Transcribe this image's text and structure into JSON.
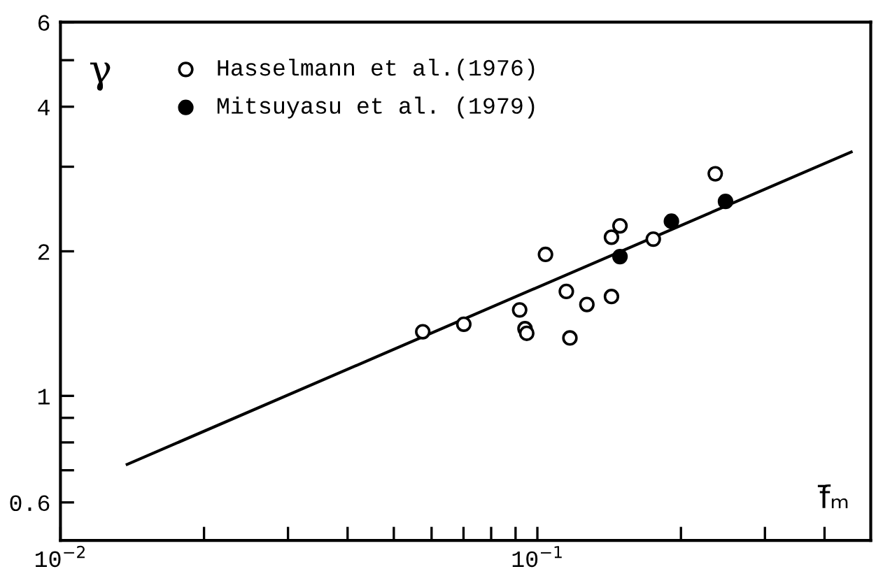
{
  "chart_data": {
    "type": "scatter",
    "ylabel": "γ",
    "xlabel": "f̄ₘ",
    "log": "xy",
    "grid": false,
    "legend": "top left",
    "xlim": [
      0.01,
      0.5
    ],
    "ylim": [
      0.5,
      6
    ],
    "xticks": [
      {
        "value": 0.01,
        "label": "10$^{−2}$"
      },
      {
        "value": 0.02,
        "label": null
      },
      {
        "value": 0.03,
        "label": null
      },
      {
        "value": 0.04,
        "label": null
      },
      {
        "value": 0.05,
        "label": null
      },
      {
        "value": 0.06,
        "label": null
      },
      {
        "value": 0.07,
        "label": null
      },
      {
        "value": 0.08,
        "label": null
      },
      {
        "value": 0.09,
        "label": null
      },
      {
        "value": 0.1,
        "label": "10$^{−1}$"
      },
      {
        "value": 0.2,
        "label": null
      },
      {
        "value": 0.3,
        "label": null
      },
      {
        "value": 0.4,
        "label": null
      }
    ],
    "yticks": [
      0.6,
      {
        "value": 0.7,
        "label": null
      },
      {
        "value": 0.8,
        "label": null
      },
      {
        "value": 0.9,
        "label": null
      },
      1,
      2,
      {
        "value": 3,
        "label": null
      },
      4,
      {
        "value": 5,
        "label": null
      },
      6
    ],
    "series": [
      {
        "name": "Hasselmann et al.(1976)",
        "marker": "circle",
        "color": "#ffffff",
        "x": [
          0.0575,
          0.0701,
          0.0918,
          0.0942,
          0.095,
          0.104,
          0.115,
          0.117,
          0.127,
          0.143,
          0.143,
          0.149,
          0.175,
          0.236
        ],
        "values": [
          1.36,
          1.41,
          1.51,
          1.38,
          1.35,
          1.97,
          1.65,
          1.32,
          1.55,
          1.61,
          2.14,
          2.26,
          2.12,
          2.9
        ]
      },
      {
        "name": "Mitsuyasu et al. (1979)",
        "marker": "circle",
        "color": "#000000",
        "x": [
          0.149,
          0.191,
          0.248
        ],
        "values": [
          1.95,
          2.31,
          2.54
        ]
      },
      {
        "type": "line",
        "color": "#000000",
        "line_style": "solid",
        "marker": "none",
        "x": [
          0.0138,
          0.455
        ],
        "values": [
          0.72,
          3.22
        ]
      }
    ]
  }
}
